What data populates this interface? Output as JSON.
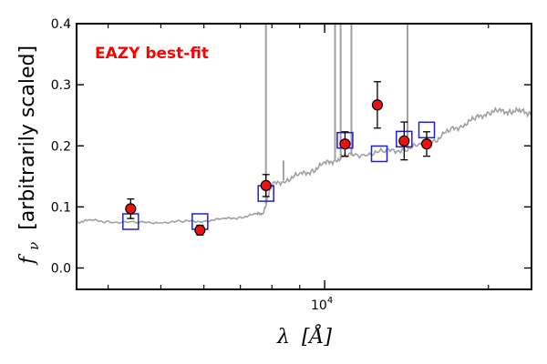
{
  "chart_data": {
    "type": "scatter",
    "annotation": "EAZY best-fit",
    "annotation_color": "#ff0000",
    "xlabel_symbol": "λ",
    "xlabel_unit": "[Å]",
    "ylabel_symbol": "f",
    "ylabel_subscript": "ν",
    "ylabel_text": "[arbitrarily scaled]",
    "x_scale": "log",
    "xlim": [
      3500,
      24000
    ],
    "ylim": [
      -0.035,
      0.4
    ],
    "y_ticks": [
      {
        "value": 0.0,
        "label": "0.0"
      },
      {
        "value": 0.1,
        "label": "0.1"
      },
      {
        "value": 0.2,
        "label": "0.2"
      },
      {
        "value": 0.3,
        "label": "0.3"
      },
      {
        "value": 0.4,
        "label": "0.4"
      }
    ],
    "x_major_ticks": [
      {
        "value": 10000,
        "base": "10",
        "exp": "4"
      }
    ],
    "x_minor_ticks": [
      4000,
      5000,
      6000,
      7000,
      8000,
      9000,
      20000
    ],
    "grid": false,
    "observed": {
      "marker": "red filled circle",
      "color": "#ee1111",
      "points": [
        {
          "x": 4400,
          "y": 0.097,
          "yerr": 0.016
        },
        {
          "x": 5900,
          "y": 0.062,
          "yerr": 0.008
        },
        {
          "x": 7800,
          "y": 0.135,
          "yerr": 0.018
        },
        {
          "x": 10900,
          "y": 0.203,
          "yerr": 0.02
        },
        {
          "x": 12500,
          "y": 0.267,
          "yerr": 0.038
        },
        {
          "x": 14000,
          "y": 0.208,
          "yerr": 0.031
        },
        {
          "x": 15400,
          "y": 0.203,
          "yerr": 0.02
        }
      ]
    },
    "model_photometry": {
      "marker": "blue open square",
      "color": "#1f1fd8",
      "points": [
        {
          "x": 4400,
          "y": 0.076
        },
        {
          "x": 5900,
          "y": 0.076
        },
        {
          "x": 7800,
          "y": 0.122
        },
        {
          "x": 10900,
          "y": 0.209
        },
        {
          "x": 12600,
          "y": 0.187
        },
        {
          "x": 14000,
          "y": 0.211
        },
        {
          "x": 15400,
          "y": 0.226
        }
      ]
    },
    "template": {
      "line_color": "#a0a0a0",
      "continuum": [
        [
          3500,
          0.075
        ],
        [
          3700,
          0.078
        ],
        [
          4000,
          0.076
        ],
        [
          4500,
          0.074
        ],
        [
          5000,
          0.075
        ],
        [
          5500,
          0.076
        ],
        [
          6000,
          0.077
        ],
        [
          6500,
          0.08
        ],
        [
          7000,
          0.083
        ],
        [
          7500,
          0.088
        ],
        [
          7700,
          0.09
        ],
        [
          8000,
          0.135
        ],
        [
          8500,
          0.145
        ],
        [
          9000,
          0.152
        ],
        [
          9500,
          0.16
        ],
        [
          10000,
          0.17
        ],
        [
          10500,
          0.178
        ],
        [
          11000,
          0.183
        ],
        [
          12000,
          0.188
        ],
        [
          13000,
          0.19
        ],
        [
          14000,
          0.195
        ],
        [
          15000,
          0.2
        ],
        [
          16000,
          0.21
        ],
        [
          17000,
          0.225
        ],
        [
          18000,
          0.235
        ],
        [
          19000,
          0.245
        ],
        [
          20000,
          0.255
        ],
        [
          21000,
          0.256
        ],
        [
          22000,
          0.257
        ],
        [
          23000,
          0.256
        ],
        [
          24000,
          0.254
        ]
      ],
      "emission_lines": [
        {
          "x": 7800,
          "peak": 0.4
        },
        {
          "x": 8400,
          "peak": 0.17
        },
        {
          "x": 10450,
          "peak": 0.4
        },
        {
          "x": 10700,
          "peak": 0.4
        },
        {
          "x": 11200,
          "peak": 0.4
        },
        {
          "x": 14200,
          "peak": 0.4
        }
      ]
    }
  }
}
